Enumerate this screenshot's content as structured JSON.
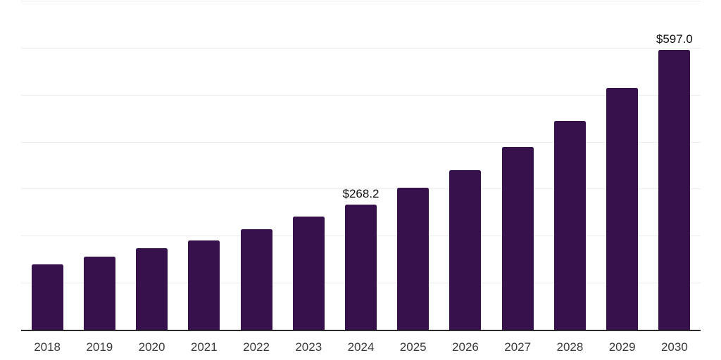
{
  "chart_data": {
    "type": "bar",
    "title": "",
    "xlabel": "",
    "ylabel": "",
    "categories": [
      "2018",
      "2019",
      "2020",
      "2021",
      "2022",
      "2023",
      "2024",
      "2025",
      "2026",
      "2027",
      "2028",
      "2029",
      "2030"
    ],
    "values": [
      140.9,
      157.3,
      175.2,
      191.8,
      215.7,
      242.6,
      268.2,
      303.3,
      341.5,
      390.2,
      446.4,
      516.0,
      597.0
    ],
    "data_labels": [
      "",
      "",
      "",
      "",
      "",
      "",
      "$268.2",
      "",
      "",
      "",
      "",
      "",
      "$597.0"
    ],
    "ylim": [
      0,
      700
    ],
    "grid_step": 100,
    "grid": true,
    "legend": false,
    "y_tick_labels_visible": false,
    "currency_prefix": "$",
    "bar_color": "#36114B",
    "axis_color": "#2b2b2b",
    "gridline_color": "#ececec",
    "x_tick_color": "#3a3a3a",
    "data_label_color": "#111111"
  }
}
